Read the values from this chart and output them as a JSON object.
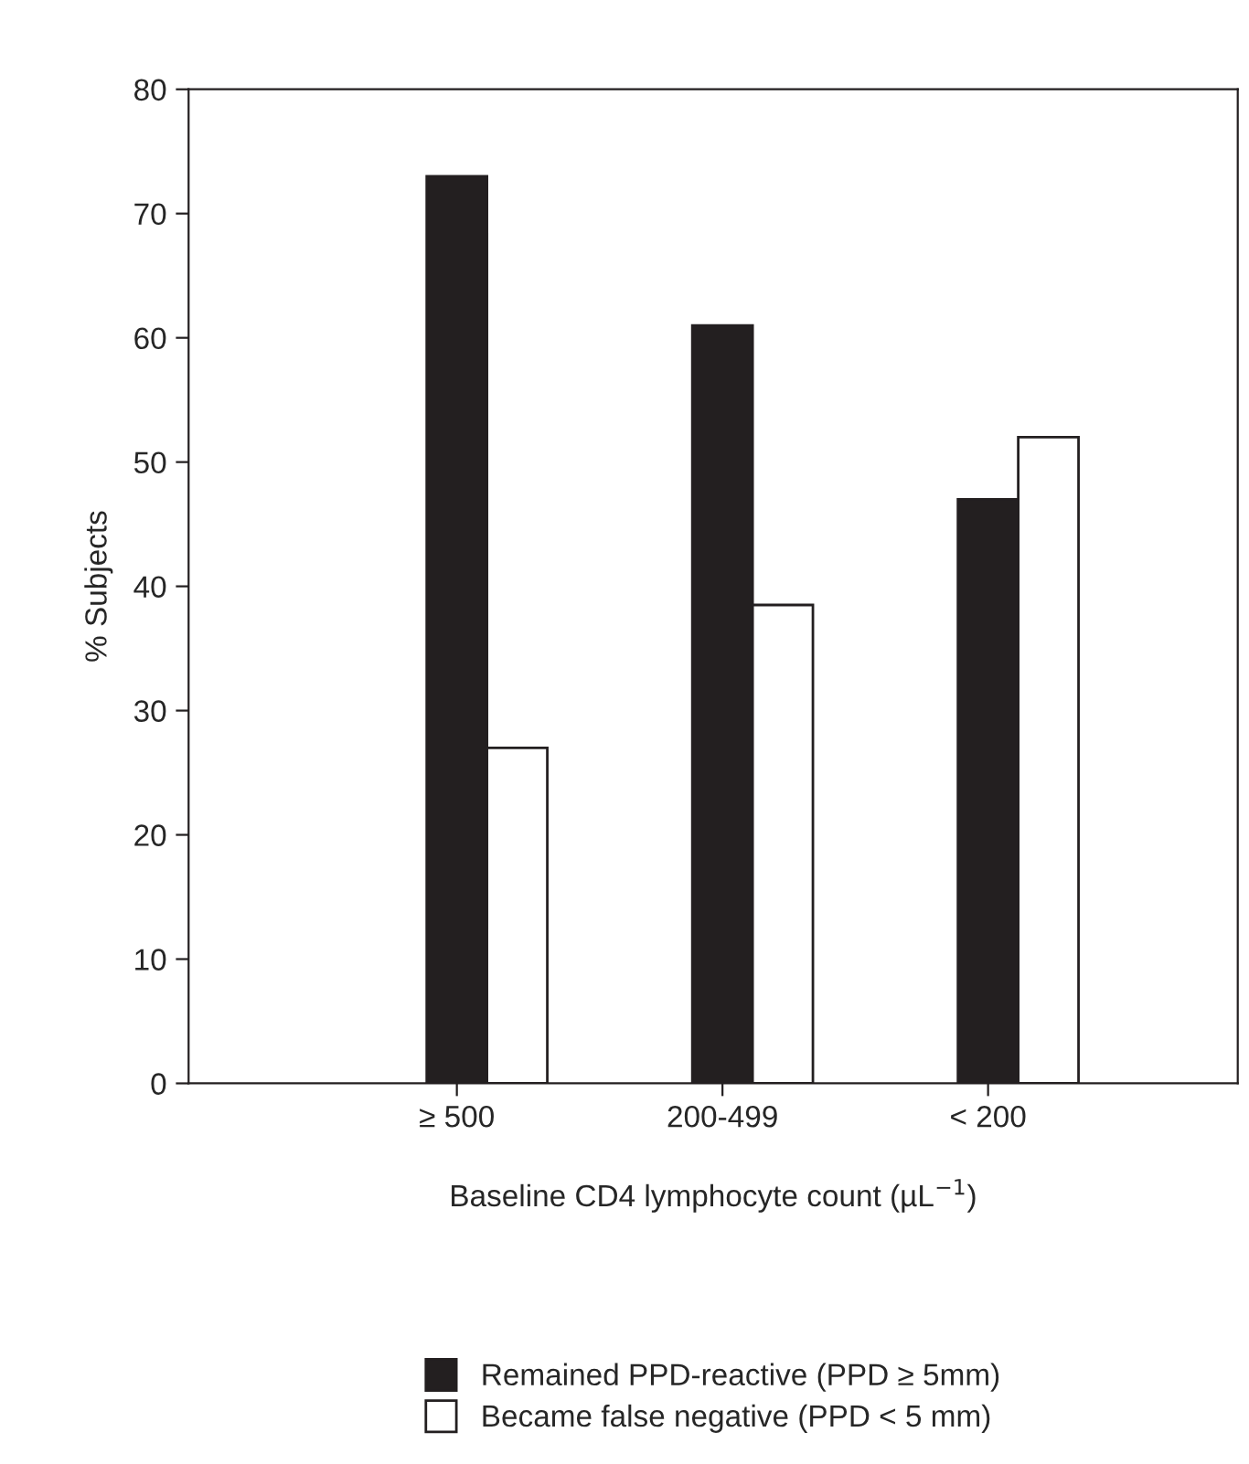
{
  "chart_data": {
    "type": "bar",
    "xlabel": "Baseline CD4 lymphocyte count (µL$^{−1}$)",
    "ylabel": "% Subjects",
    "categories": [
      "≥ 500",
      "200-499",
      "< 200"
    ],
    "series": [
      {
        "name": "Remained PPD-reactive (PPD ≥ 5mm)",
        "color": "#231f20",
        "values": [
          73,
          61,
          47
        ]
      },
      {
        "name": "Became false negative (PPD < 5 mm)",
        "color": "#ffffff",
        "values": [
          27,
          38.5,
          52
        ]
      }
    ],
    "ylim": [
      0,
      80
    ],
    "yticks": [
      0,
      10,
      20,
      30,
      40,
      50,
      60,
      70,
      80
    ],
    "grid": false,
    "legend": "bottom"
  }
}
